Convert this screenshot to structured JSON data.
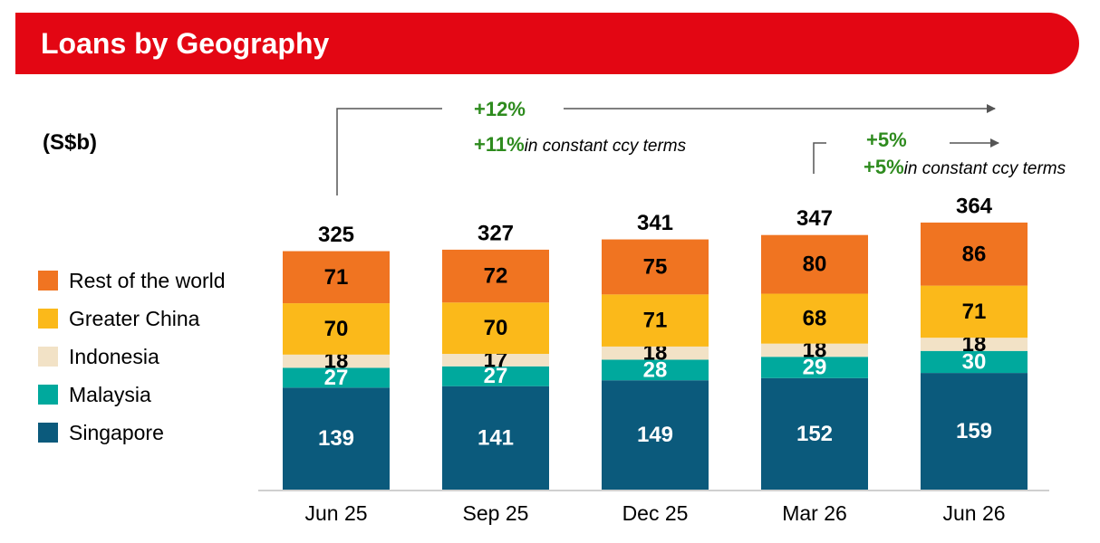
{
  "header": {
    "title": "Loans by Geography"
  },
  "unit_label": "(S$b)",
  "annotations": {
    "long_period": {
      "nominal": "+12%",
      "constant": "+11%",
      "constant_note": "in constant ccy terms"
    },
    "short_period": {
      "nominal": "+5%",
      "constant": "+5%",
      "constant_note": "in constant ccy terms"
    }
  },
  "chart_data": {
    "type": "bar",
    "stacked": true,
    "categories": [
      "Jun 25",
      "Sep 25",
      "Dec 25",
      "Mar 26",
      "Jun 26"
    ],
    "totals": [
      325,
      327,
      341,
      347,
      364
    ],
    "series": [
      {
        "name": "Singapore",
        "color": "#0b5a7c",
        "label_color": "#ffffff",
        "values": [
          139,
          141,
          149,
          152,
          159
        ]
      },
      {
        "name": "Malaysia",
        "color": "#00a99d",
        "label_color": "#ffffff",
        "values": [
          27,
          27,
          28,
          29,
          30
        ]
      },
      {
        "name": "Indonesia",
        "color": "#f2e2c6",
        "label_color": "#000000",
        "values": [
          18,
          17,
          18,
          18,
          18
        ]
      },
      {
        "name": "Greater China",
        "color": "#fbb91a",
        "label_color": "#000000",
        "values": [
          70,
          70,
          71,
          68,
          71
        ]
      },
      {
        "name": "Rest of the world",
        "color": "#f07421",
        "label_color": "#000000",
        "values": [
          71,
          72,
          75,
          80,
          86
        ]
      }
    ],
    "legend_position": "left",
    "grid": false
  }
}
